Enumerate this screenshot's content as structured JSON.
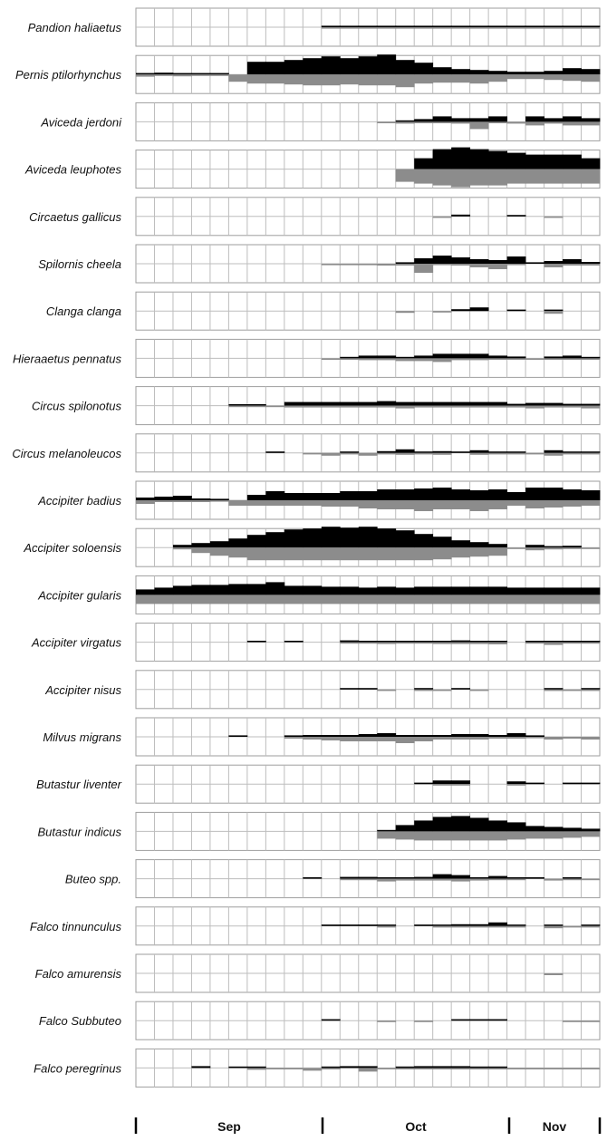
{
  "chart_data": {
    "type": "area",
    "note_series": [
      "upper",
      "lower"
    ],
    "colors": {
      "upper": "#000000",
      "lower": "#8c8c8c",
      "grid": "#bdbdbd",
      "frame": "#9e9e9e",
      "axis": "#000000"
    },
    "x_axis": {
      "months": [
        "Sep",
        "Oct",
        "Nov"
      ],
      "bins_per_panel": 25
    },
    "species": [
      {
        "name": "Pandion haliaetus",
        "upper": [
          0,
          0,
          0,
          0,
          0,
          0,
          0,
          0,
          0,
          0,
          0,
          0,
          0,
          0,
          0,
          0,
          0,
          0,
          0,
          0,
          0,
          0,
          0,
          0,
          0
        ],
        "lower": [
          0,
          0,
          0,
          0,
          0,
          0,
          0,
          0,
          0,
          0,
          0,
          0,
          0,
          0,
          0,
          0,
          0,
          0,
          0,
          0,
          0,
          0,
          0,
          0,
          0
        ]
      },
      {
        "name": "Pernis ptilorhynchus",
        "upper": [
          0,
          0,
          0,
          0,
          0,
          0,
          0,
          0,
          0,
          0,
          0,
          0,
          0,
          0,
          0,
          0,
          0,
          0,
          0,
          0,
          0,
          0,
          0,
          0,
          0
        ],
        "lower": [
          0,
          0,
          0,
          0,
          0,
          0,
          0,
          0,
          0,
          0,
          0,
          0,
          0,
          0,
          0,
          0,
          0,
          0,
          0,
          0,
          0,
          0,
          0,
          0,
          0
        ]
      },
      {
        "name": "Aviceda jerdoni",
        "upper": [
          0,
          0,
          0,
          0,
          0,
          0,
          0,
          0,
          0,
          0,
          0,
          0,
          0,
          0,
          0,
          0,
          0,
          0,
          0,
          0,
          0,
          0,
          0,
          0,
          0
        ],
        "lower": [
          0,
          0,
          0,
          0,
          0,
          0,
          0,
          0,
          0,
          0,
          0,
          0,
          0,
          0,
          0,
          0,
          0,
          0,
          0,
          0,
          0,
          0,
          0,
          0,
          0
        ]
      },
      {
        "name": "Aviceda leuphotes",
        "upper": [
          0,
          0,
          0,
          0,
          0,
          0,
          0,
          0,
          0,
          0,
          0,
          0,
          0,
          0,
          0,
          0,
          0,
          0,
          0,
          0,
          0,
          0,
          0,
          0,
          0
        ],
        "lower": [
          0,
          0,
          0,
          0,
          0,
          0,
          0,
          0,
          0,
          0,
          0,
          0,
          0,
          0,
          0,
          0,
          0,
          0,
          0,
          0,
          0,
          0,
          0,
          0,
          0
        ]
      },
      {
        "name": "Circaetus gallicus",
        "upper": [
          0,
          0,
          0,
          0,
          0,
          0,
          0,
          0,
          0,
          0,
          0,
          0,
          0,
          0,
          0,
          0,
          0,
          0,
          0,
          0,
          0,
          0,
          0,
          0,
          0
        ],
        "lower": [
          0,
          0,
          0,
          0,
          0,
          0,
          0,
          0,
          0,
          0,
          0,
          0,
          0,
          0,
          0,
          0,
          0,
          0,
          0,
          0,
          0,
          0,
          0,
          0,
          0
        ]
      },
      {
        "name": "Spilornis cheela",
        "upper": [
          0,
          0,
          0,
          0,
          0,
          0,
          0,
          0,
          0,
          0,
          0,
          0,
          0,
          0,
          0,
          0,
          0,
          0,
          0,
          0,
          0,
          0,
          0,
          0,
          0
        ],
        "lower": [
          0,
          0,
          0,
          0,
          0,
          0,
          0,
          0,
          0,
          0,
          0,
          0,
          0,
          0,
          0,
          0,
          0,
          0,
          0,
          0,
          0,
          0,
          0,
          0,
          0
        ]
      },
      {
        "name": "Clanga clanga",
        "upper": [
          0,
          0,
          0,
          0,
          0,
          0,
          0,
          0,
          0,
          0,
          0,
          0,
          0,
          0,
          0,
          0,
          0,
          0,
          0,
          0,
          0,
          0,
          0,
          0,
          0
        ],
        "lower": [
          0,
          0,
          0,
          0,
          0,
          0,
          0,
          0,
          0,
          0,
          0,
          0,
          0,
          0,
          0,
          0,
          0,
          0,
          0,
          0,
          0,
          0,
          0,
          0,
          0
        ]
      },
      {
        "name": "Hieraaetus pennatus",
        "upper": [
          0,
          0,
          0,
          0,
          0,
          0,
          0,
          0,
          0,
          0,
          0,
          0,
          0,
          0,
          0,
          0,
          0,
          0,
          0,
          0,
          0,
          0,
          0,
          0,
          0
        ],
        "lower": [
          0,
          0,
          0,
          0,
          0,
          0,
          0,
          0,
          0,
          0,
          0,
          0,
          0,
          0,
          0,
          0,
          0,
          0,
          0,
          0,
          0,
          0,
          0,
          0,
          0
        ]
      },
      {
        "name": "Circus spilonotus",
        "upper": [
          0,
          0,
          0,
          0,
          0,
          0,
          0,
          0,
          0,
          0,
          0,
          0,
          0,
          0,
          0,
          0,
          0,
          0,
          0,
          0,
          0,
          0,
          0,
          0,
          0
        ],
        "lower": [
          0,
          0,
          0,
          0,
          0,
          0,
          0,
          0,
          0,
          0,
          0,
          0,
          0,
          0,
          0,
          0,
          0,
          0,
          0,
          0,
          0,
          0,
          0,
          0,
          0
        ]
      },
      {
        "name": "Circus melanoleucos",
        "upper": [
          0,
          0,
          0,
          0,
          0,
          0,
          0,
          0,
          0,
          0,
          0,
          0,
          0,
          0,
          0,
          0,
          0,
          0,
          0,
          0,
          0,
          0,
          0,
          0,
          0
        ],
        "lower": [
          0,
          0,
          0,
          0,
          0,
          0,
          0,
          0,
          0,
          0,
          0,
          0,
          0,
          0,
          0,
          0,
          0,
          0,
          0,
          0,
          0,
          0,
          0,
          0,
          0
        ]
      },
      {
        "name": "Accipiter badius",
        "upper": [
          0,
          0,
          0,
          0,
          0,
          0,
          0,
          0,
          0,
          0,
          0,
          0,
          0,
          0,
          0,
          0,
          0,
          0,
          0,
          0,
          0,
          0,
          0,
          0,
          0
        ],
        "lower": [
          0,
          0,
          0,
          0,
          0,
          0,
          0,
          0,
          0,
          0,
          0,
          0,
          0,
          0,
          0,
          0,
          0,
          0,
          0,
          0,
          0,
          0,
          0,
          0,
          0
        ]
      },
      {
        "name": "Accipiter soloensis",
        "upper": [
          0,
          0,
          0,
          0,
          0,
          0,
          0,
          0,
          0,
          0,
          0,
          0,
          0,
          0,
          0,
          0,
          0,
          0,
          0,
          0,
          0,
          0,
          0,
          0,
          0
        ],
        "lower": [
          0,
          0,
          0,
          0,
          0,
          0,
          0,
          0,
          0,
          0,
          0,
          0,
          0,
          0,
          0,
          0,
          0,
          0,
          0,
          0,
          0,
          0,
          0,
          0,
          0
        ]
      },
      {
        "name": "Accipiter gularis",
        "upper": [
          0,
          0,
          0,
          0,
          0,
          0,
          0,
          0,
          0,
          0,
          0,
          0,
          0,
          0,
          0,
          0,
          0,
          0,
          0,
          0,
          0,
          0,
          0,
          0,
          0
        ],
        "lower": [
          0,
          0,
          0,
          0,
          0,
          0,
          0,
          0,
          0,
          0,
          0,
          0,
          0,
          0,
          0,
          0,
          0,
          0,
          0,
          0,
          0,
          0,
          0,
          0,
          0
        ]
      },
      {
        "name": "Accipiter virgatus",
        "upper": [
          0,
          0,
          0,
          0,
          0,
          0,
          0,
          0,
          0,
          0,
          0,
          0,
          0,
          0,
          0,
          0,
          0,
          0,
          0,
          0,
          0,
          0,
          0,
          0,
          0
        ],
        "lower": [
          0,
          0,
          0,
          0,
          0,
          0,
          0,
          0,
          0,
          0,
          0,
          0,
          0,
          0,
          0,
          0,
          0,
          0,
          0,
          0,
          0,
          0,
          0,
          0,
          0
        ]
      },
      {
        "name": "Accipiter nisus",
        "upper": [
          0,
          0,
          0,
          0,
          0,
          0,
          0,
          0,
          0,
          0,
          0,
          0,
          0,
          0,
          0,
          0,
          0,
          0,
          0,
          0,
          0,
          0,
          0,
          0,
          0
        ],
        "lower": [
          0,
          0,
          0,
          0,
          0,
          0,
          0,
          0,
          0,
          0,
          0,
          0,
          0,
          0,
          0,
          0,
          0,
          0,
          0,
          0,
          0,
          0,
          0,
          0,
          0
        ]
      },
      {
        "name": "Milvus migrans",
        "upper": [
          0,
          0,
          0,
          0,
          0,
          0,
          0,
          0,
          0,
          0,
          0,
          0,
          0,
          0,
          0,
          0,
          0,
          0,
          0,
          0,
          0,
          0,
          0,
          0,
          0
        ],
        "lower": [
          0,
          0,
          0,
          0,
          0,
          0,
          0,
          0,
          0,
          0,
          0,
          0,
          0,
          0,
          0,
          0,
          0,
          0,
          0,
          0,
          0,
          0,
          0,
          0,
          0
        ]
      },
      {
        "name": "Butastur liventer",
        "upper": [
          0,
          0,
          0,
          0,
          0,
          0,
          0,
          0,
          0,
          0,
          0,
          0,
          0,
          0,
          0,
          0,
          0,
          0,
          0,
          0,
          0,
          0,
          0,
          0,
          0
        ],
        "lower": [
          0,
          0,
          0,
          0,
          0,
          0,
          0,
          0,
          0,
          0,
          0,
          0,
          0,
          0,
          0,
          0,
          0,
          0,
          0,
          0,
          0,
          0,
          0,
          0,
          0
        ]
      },
      {
        "name": "Butastur indicus",
        "upper": [
          0,
          0,
          0,
          0,
          0,
          0,
          0,
          0,
          0,
          0,
          0,
          0,
          0,
          0,
          0,
          0,
          0,
          0,
          0,
          0,
          0,
          0,
          0,
          0,
          0
        ],
        "lower": [
          0,
          0,
          0,
          0,
          0,
          0,
          0,
          0,
          0,
          0,
          0,
          0,
          0,
          0,
          0,
          0,
          0,
          0,
          0,
          0,
          0,
          0,
          0,
          0,
          0
        ]
      },
      {
        "name": "Buteo spp.",
        "upper": [
          0,
          0,
          0,
          0,
          0,
          0,
          0,
          0,
          0,
          0,
          0,
          0,
          0,
          0,
          0,
          0,
          0,
          0,
          0,
          0,
          0,
          0,
          0,
          0,
          0
        ],
        "lower": [
          0,
          0,
          0,
          0,
          0,
          0,
          0,
          0,
          0,
          0,
          0,
          0,
          0,
          0,
          0,
          0,
          0,
          0,
          0,
          0,
          0,
          0,
          0,
          0,
          0
        ]
      },
      {
        "name": "Falco tinnunculus",
        "upper": [
          0,
          0,
          0,
          0,
          0,
          0,
          0,
          0,
          0,
          0,
          0,
          0,
          0,
          0,
          0,
          0,
          0,
          0,
          0,
          0,
          0,
          0,
          0,
          0,
          0
        ],
        "lower": [
          0,
          0,
          0,
          0,
          0,
          0,
          0,
          0,
          0,
          0,
          0,
          0,
          0,
          0,
          0,
          0,
          0,
          0,
          0,
          0,
          0,
          0,
          0,
          0,
          0
        ]
      },
      {
        "name": "Falco amurensis",
        "upper": [
          0,
          0,
          0,
          0,
          0,
          0,
          0,
          0,
          0,
          0,
          0,
          0,
          0,
          0,
          0,
          0,
          0,
          0,
          0,
          0,
          0,
          0,
          0,
          0,
          0
        ],
        "lower": [
          0,
          0,
          0,
          0,
          0,
          0,
          0,
          0,
          0,
          0,
          0,
          0,
          0,
          0,
          0,
          0,
          0,
          0,
          0,
          0,
          0,
          0,
          0,
          0,
          0
        ]
      },
      {
        "name": "Falco Subbuteo",
        "upper": [
          0,
          0,
          0,
          0,
          0,
          0,
          0,
          0,
          0,
          0,
          0,
          0,
          0,
          0,
          0,
          0,
          0,
          0,
          0,
          0,
          0,
          0,
          0,
          0,
          0
        ],
        "lower": [
          0,
          0,
          0,
          0,
          0,
          0,
          0,
          0,
          0,
          0,
          0,
          0,
          0,
          0,
          0,
          0,
          0,
          0,
          0,
          0,
          0,
          0,
          0,
          0,
          0
        ]
      },
      {
        "name": "Falco peregrinus",
        "upper": [
          0,
          0,
          0,
          0,
          0,
          0,
          0,
          0,
          0,
          0,
          0,
          0,
          0,
          0,
          0,
          0,
          0,
          0,
          0,
          0,
          0,
          0,
          0,
          0,
          0
        ],
        "lower": [
          0,
          0,
          0,
          0,
          0,
          0,
          0,
          0,
          0,
          0,
          0,
          0,
          0,
          0,
          0,
          0,
          0,
          0,
          0,
          0,
          0,
          0,
          0,
          0,
          0
        ]
      }
    ]
  }
}
